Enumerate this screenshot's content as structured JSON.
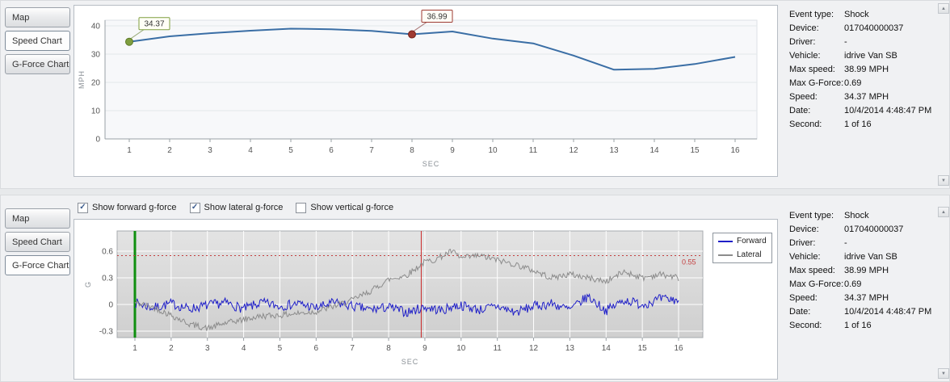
{
  "colors": {
    "speed_line": "#3a6ea5",
    "marker_start_fill": "#7f9e3f",
    "marker_start_edge": "#5d7a26",
    "marker_event_fill": "#9e3a32",
    "marker_event_edge": "#76231d",
    "forward_line": "#1f1fc8",
    "lateral_line": "#8c8c8c",
    "event_vline_green": "#0f8f0f",
    "event_vline_red": "#cc2a2a",
    "threshold_red": "#c44040"
  },
  "icons": {
    "check": "✓",
    "scroll_up": "▲",
    "scroll_down": "▼"
  },
  "info": {
    "rows": [
      {
        "label": "Event type:",
        "value": "Shock"
      },
      {
        "label": "Device:",
        "value": "017040000037"
      },
      {
        "label": "Driver:",
        "value": "-"
      },
      {
        "label": "Vehicle:",
        "value": "idrive Van SB"
      },
      {
        "label": "Max speed:",
        "value": "38.99 MPH"
      },
      {
        "label": "Max G-Force:",
        "value": "0.69"
      },
      {
        "label": "Speed:",
        "value": "34.37 MPH"
      },
      {
        "label": "Date:",
        "value": "10/4/2014 4:48:47 PM"
      },
      {
        "label": "Second:",
        "value": "1 of 16"
      }
    ]
  },
  "top_panel": {
    "tabs": [
      {
        "label": "Map",
        "active": false
      },
      {
        "label": "Speed Chart",
        "active": true
      },
      {
        "label": "G-Force Chart",
        "active": false
      }
    ]
  },
  "bottom_panel": {
    "tabs": [
      {
        "label": "Map",
        "active": false
      },
      {
        "label": "Speed Chart",
        "active": false
      },
      {
        "label": "G-Force Chart",
        "active": true
      }
    ],
    "checkboxes": [
      {
        "label": "Show forward g-force",
        "checked": true
      },
      {
        "label": "Show lateral g-force",
        "checked": true
      },
      {
        "label": "Show vertical g-force",
        "checked": false
      }
    ]
  },
  "chart_data": [
    {
      "type": "line",
      "title": "Speed Chart",
      "xlabel": "SEC",
      "ylabel": "MPH",
      "x": [
        1,
        2,
        3,
        4,
        5,
        6,
        7,
        8,
        9,
        10,
        11,
        12,
        13,
        14,
        15,
        16
      ],
      "values": [
        34.37,
        36.3,
        37.4,
        38.3,
        38.99,
        38.8,
        38.2,
        36.99,
        38.0,
        35.5,
        33.8,
        29.5,
        24.5,
        24.8,
        26.5,
        29.0
      ],
      "yticks": [
        0,
        10,
        20,
        30,
        40
      ],
      "ylim": [
        0,
        42
      ],
      "annotations": [
        {
          "x": 1,
          "label": "34.37",
          "fill": "#7f9e3f",
          "edge": "#5d7a26"
        },
        {
          "x": 8,
          "label": "36.99",
          "fill": "#9e3a32",
          "edge": "#76231d"
        }
      ]
    },
    {
      "type": "line",
      "title": "G-Force Chart",
      "xlabel": "SEC",
      "ylabel": "G",
      "xticks": [
        1,
        2,
        3,
        4,
        5,
        6,
        7,
        8,
        9,
        10,
        11,
        12,
        13,
        14,
        15,
        16
      ],
      "yticks": [
        -0.3,
        0,
        0.3,
        0.6
      ],
      "ylim": [
        -0.37,
        0.83
      ],
      "threshold": {
        "value": 0.55,
        "label": "0.55"
      },
      "vlines": [
        {
          "x": 1,
          "color": "#0f8f0f",
          "width": 3
        },
        {
          "x": 8.9,
          "color": "#cc2a2a",
          "width": 1
        }
      ],
      "series": [
        {
          "name": "Forward",
          "color": "#1f1fc8",
          "noise": 0.055,
          "kx": [
            1,
            1.5,
            2,
            2.5,
            3,
            3.5,
            4,
            4.5,
            5,
            5.5,
            6,
            6.5,
            7,
            7.5,
            8,
            8.5,
            9,
            9.25,
            9.5,
            9.75,
            10,
            10.5,
            11,
            11.5,
            12,
            12.5,
            13,
            13.5,
            14,
            14.5,
            15,
            15.5,
            16
          ],
          "ky": [
            0.02,
            -0.04,
            0.01,
            -0.05,
            -0.01,
            0.02,
            -0.05,
            0.02,
            -0.02,
            0.01,
            -0.04,
            0.02,
            -0.02,
            -0.06,
            -0.03,
            -0.09,
            -0.03,
            -0.05,
            -0.07,
            -0.02,
            -0.01,
            -0.06,
            -0.02,
            -0.09,
            -0.02,
            0.01,
            -0.06,
            0.09,
            -0.07,
            0.05,
            0.0,
            0.06,
            0.05
          ]
        },
        {
          "name": "Lateral",
          "color": "#8c8c8c",
          "noise": 0.035,
          "kx": [
            1,
            1.5,
            2,
            2.5,
            3,
            3.5,
            4,
            4.5,
            5,
            5.5,
            6,
            6.5,
            7,
            7.5,
            8,
            8.5,
            9,
            9.25,
            9.5,
            9.75,
            10,
            10.5,
            11,
            11.5,
            12,
            12.5,
            13,
            13.5,
            14,
            14.5,
            15,
            15.5,
            16
          ],
          "ky": [
            0.02,
            -0.03,
            -0.12,
            -0.22,
            -0.27,
            -0.21,
            -0.17,
            -0.13,
            -0.12,
            -0.1,
            -0.08,
            -0.02,
            0.05,
            0.15,
            0.28,
            0.33,
            0.48,
            0.5,
            0.55,
            0.6,
            0.52,
            0.55,
            0.5,
            0.45,
            0.38,
            0.3,
            0.34,
            0.3,
            0.26,
            0.37,
            0.3,
            0.34,
            0.3
          ]
        }
      ]
    }
  ]
}
